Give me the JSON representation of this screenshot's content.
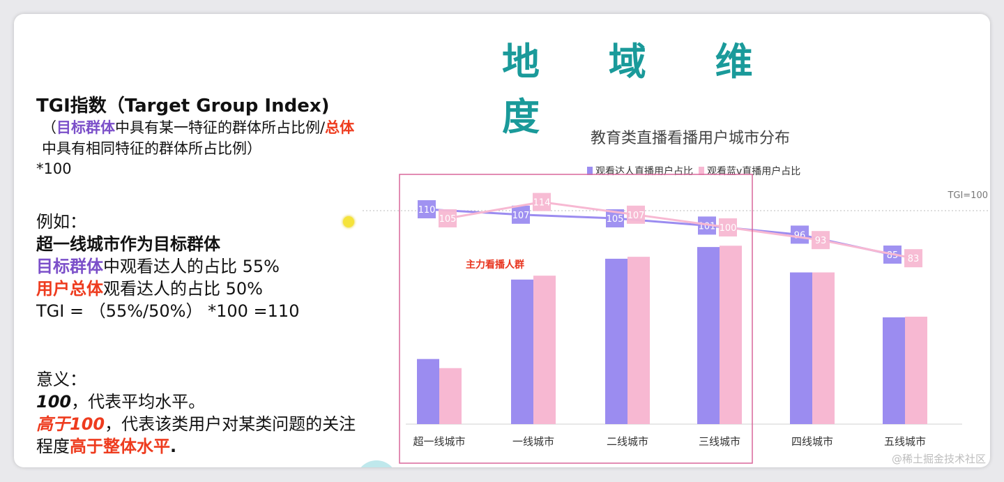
{
  "page_title": "地 域 维 度",
  "left": {
    "heading": "TGI指数（Target Group Index)",
    "def_open": "（",
    "def_target": "目标群体",
    "def_mid1": "中具有某一特征的群体所占比例/",
    "def_total": "总体",
    "def_mid2": "中具有相同特征的群体所占比例）",
    "def_mult": "*100",
    "example_label": "例如：",
    "example_title": "超一线城市作为目标群体",
    "ex1_hl": "目标群体",
    "ex1_rest": "中观看达人的占比 55%",
    "ex2_hl": "用户总体",
    "ex2_rest": "观看达人的占比 50%",
    "ex3": "TGI = （55%/50%） *100 =110",
    "meaning_label": "意义：",
    "m1_hl": "100",
    "m1_rest": "，代表平均水平。",
    "m2_hl": "高于100",
    "m2_rest": "，代表该类用户对某类问题的关注程度",
    "m2_hl2": "高于整体水平",
    "m2_end": "."
  },
  "watermark": "@稀土掘金技术社区",
  "colors": {
    "series1": "#9b8cf0",
    "series2": "#f7b8d2",
    "highlight_box": "#d9679a",
    "title": "#1a9a9a"
  },
  "chart_data": {
    "type": "bar",
    "title": "教育类直播看播用户城市分布",
    "categories": [
      "超一线城市",
      "一线城市",
      "二线城市",
      "三线城市",
      "四线城市",
      "五线城市"
    ],
    "series": [
      {
        "name": "观看达人直播用户占比",
        "values": [
          100,
          222,
          254,
          272,
          233,
          164
        ]
      },
      {
        "name": "观看蓝v直播用户占比",
        "values": [
          86,
          228,
          257,
          274,
          233,
          165
        ]
      }
    ],
    "ylim": [
      0,
      300
    ],
    "tgi_series": [
      {
        "values": [
          110,
          107,
          105,
          101,
          96,
          85
        ]
      },
      {
        "values": [
          105,
          114,
          107,
          100,
          93,
          83
        ]
      }
    ],
    "tgi_ref_label": "TGI=100",
    "annotation": "主力看播人群",
    "legend_position": "top"
  }
}
